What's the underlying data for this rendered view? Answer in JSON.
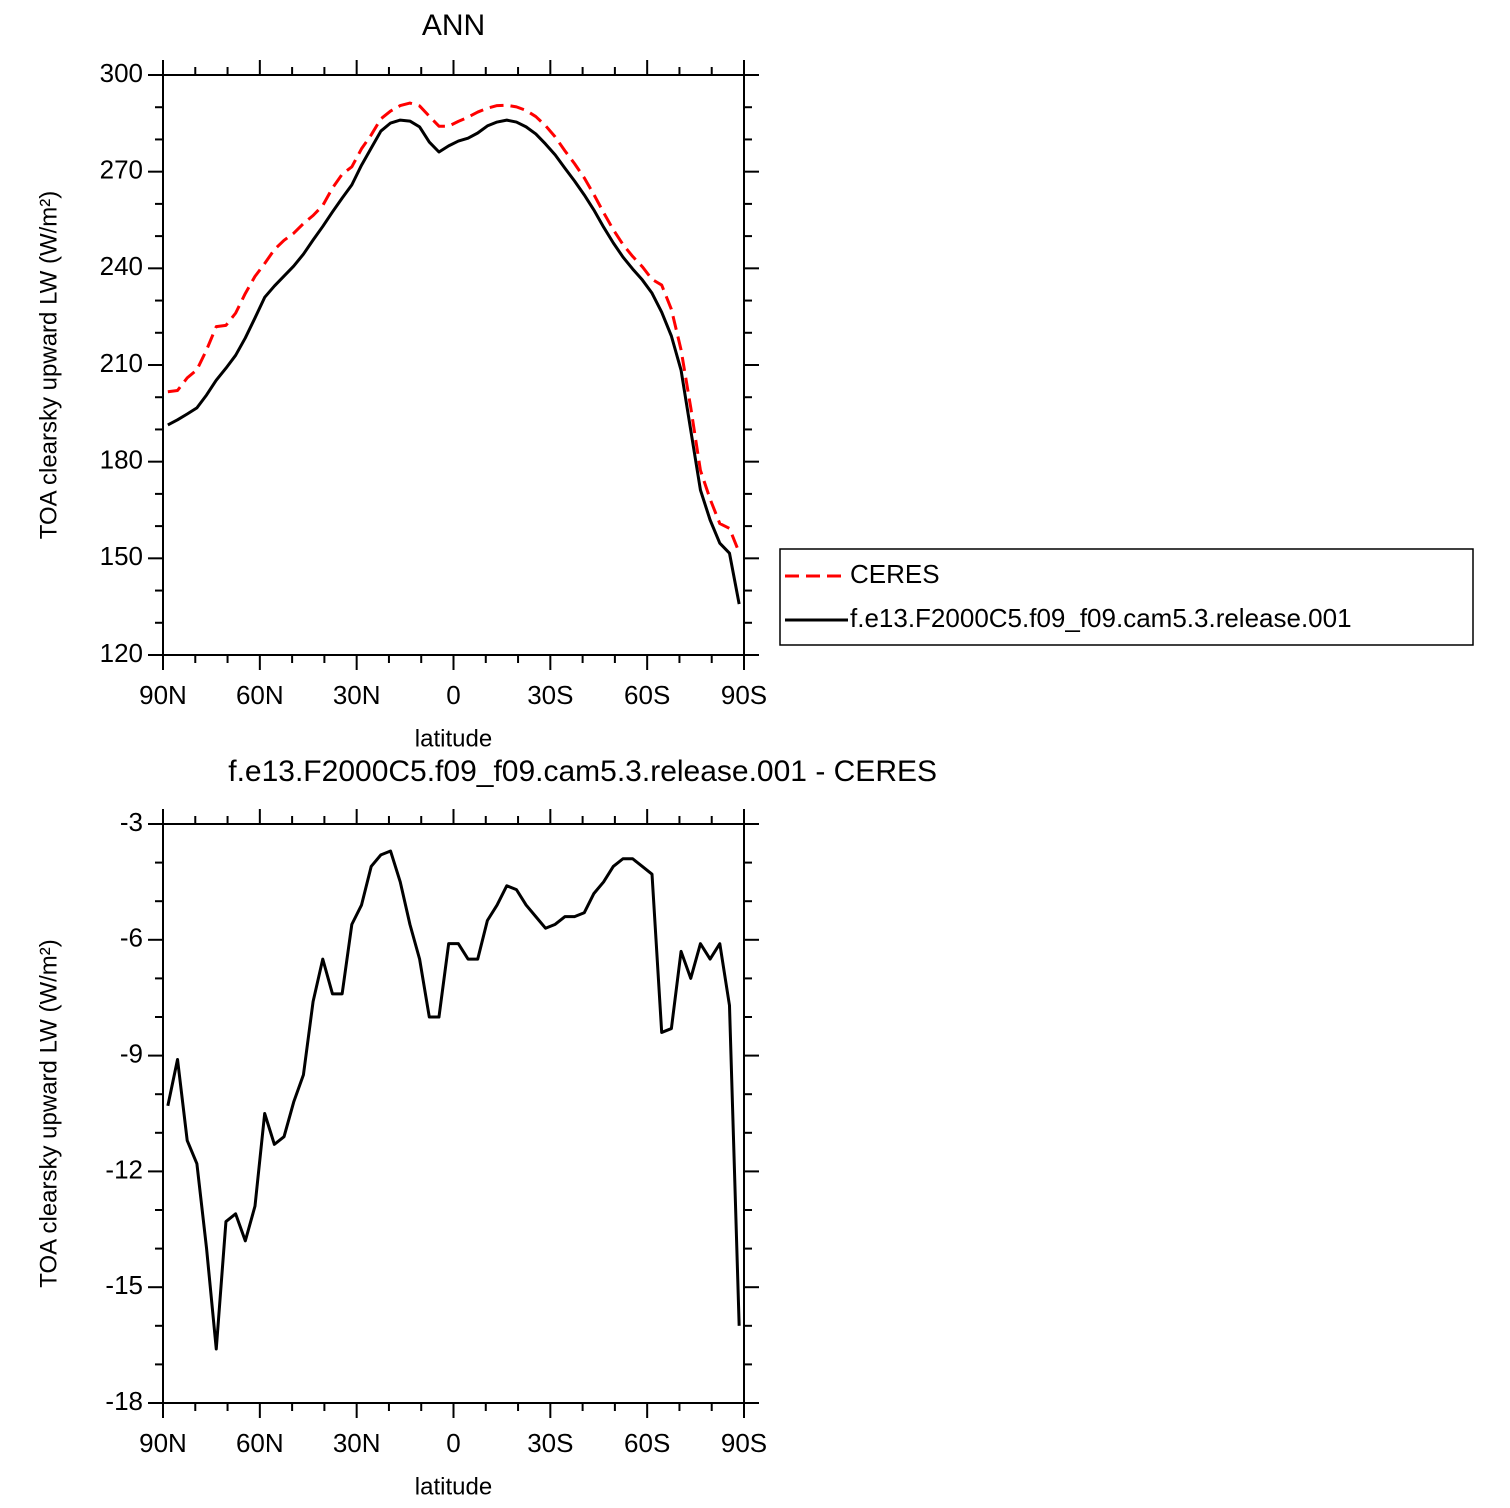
{
  "chart_data": [
    {
      "type": "line",
      "title": "ANN",
      "xlabel": "latitude",
      "ylabel": "TOA clearsky upward LW (W/m²)",
      "x": [
        88.5,
        85.5,
        82.5,
        79.5,
        76.5,
        73.5,
        70.5,
        67.5,
        64.5,
        61.5,
        58.5,
        55.5,
        52.5,
        49.5,
        46.5,
        43.5,
        40.5,
        37.5,
        34.5,
        31.5,
        28.5,
        25.5,
        22.5,
        19.5,
        16.5,
        13.5,
        10.5,
        7.5,
        4.5,
        1.5,
        -1.5,
        -4.5,
        -7.5,
        -10.5,
        -13.5,
        -16.5,
        -19.5,
        -22.5,
        -25.5,
        -28.5,
        -31.5,
        -34.5,
        -37.5,
        -40.5,
        -43.5,
        -46.5,
        -49.5,
        -52.5,
        -55.5,
        -58.5,
        -61.5,
        -64.5,
        -67.5,
        -70.5,
        -73.5,
        -76.5,
        -79.5,
        -82.5,
        -85.5,
        -88.5
      ],
      "xlim": [
        90,
        -90
      ],
      "xticks": [
        {
          "value": 90,
          "label": "90N"
        },
        {
          "value": 60,
          "label": "60N"
        },
        {
          "value": 30,
          "label": "30N"
        },
        0,
        {
          "value": -30,
          "label": "30S"
        },
        {
          "value": -60,
          "label": "60S"
        },
        {
          "value": -90,
          "label": "90S"
        }
      ],
      "xminorticks": [
        80,
        70,
        50,
        40,
        20,
        10,
        -10,
        -20,
        -40,
        -50,
        -70,
        -80
      ],
      "ylim": [
        120,
        300
      ],
      "yticks": [
        120,
        150,
        180,
        210,
        240,
        270,
        300
      ],
      "yminorticks": [
        130,
        140,
        160,
        170,
        190,
        200,
        220,
        230,
        250,
        260,
        280,
        290
      ],
      "legend": "right",
      "series": [
        {
          "name": "CERES",
          "color": "#ff0000",
          "dash": "dashed",
          "values": [
            201.7,
            202.1,
            206.0,
            208.5,
            214.7,
            221.9,
            222.3,
            226.1,
            232.2,
            237.5,
            241.5,
            245.8,
            248.7,
            250.9,
            253.9,
            256.4,
            259.5,
            264.9,
            269.2,
            271.5,
            277.1,
            281.4,
            286.4,
            288.8,
            290.5,
            291.3,
            290.4,
            287.2,
            284.1,
            284.1,
            285.6,
            286.9,
            288.5,
            289.7,
            290.5,
            290.6,
            290.1,
            289.0,
            287.1,
            284.3,
            280.8,
            276.5,
            272.5,
            268.1,
            262.9,
            257.3,
            252.0,
            247.4,
            243.7,
            240.5,
            236.6,
            234.8,
            227.3,
            214.7,
            196.8,
            177.3,
            168.4,
            160.8,
            159.3,
            151.8
          ]
        },
        {
          "name": "f.e13.F2000C5.f09_f09.cam5.3.release.001",
          "color": "#000000",
          "dash": "solid",
          "values": [
            191.4,
            193.0,
            194.8,
            196.7,
            200.7,
            205.3,
            209.0,
            213.0,
            218.4,
            224.6,
            231.0,
            234.5,
            237.6,
            240.7,
            244.4,
            248.8,
            253.0,
            257.5,
            261.8,
            265.9,
            272.0,
            277.3,
            282.6,
            285.1,
            286.0,
            285.7,
            283.9,
            279.2,
            276.1,
            278.0,
            279.5,
            280.4,
            282.0,
            284.2,
            285.4,
            286.0,
            285.4,
            283.9,
            281.7,
            278.6,
            275.2,
            271.1,
            267.1,
            262.8,
            258.1,
            252.8,
            247.9,
            243.5,
            239.8,
            236.4,
            232.3,
            226.4,
            219.0,
            208.4,
            189.8,
            171.2,
            161.9,
            154.7,
            151.6,
            135.8
          ]
        }
      ]
    },
    {
      "type": "line",
      "title": "f.e13.F2000C5.f09_f09.cam5.3.release.001  -  CERES",
      "xlabel": "latitude",
      "ylabel": "TOA clearsky upward LW (W/m²)",
      "x": [
        88.5,
        85.5,
        82.5,
        79.5,
        76.5,
        73.5,
        70.5,
        67.5,
        64.5,
        61.5,
        58.5,
        55.5,
        52.5,
        49.5,
        46.5,
        43.5,
        40.5,
        37.5,
        34.5,
        31.5,
        28.5,
        25.5,
        22.5,
        19.5,
        16.5,
        13.5,
        10.5,
        7.5,
        4.5,
        1.5,
        -1.5,
        -4.5,
        -7.5,
        -10.5,
        -13.5,
        -16.5,
        -19.5,
        -22.5,
        -25.5,
        -28.5,
        -31.5,
        -34.5,
        -37.5,
        -40.5,
        -43.5,
        -46.5,
        -49.5,
        -52.5,
        -55.5,
        -58.5,
        -61.5,
        -64.5,
        -67.5,
        -70.5,
        -73.5,
        -76.5,
        -79.5,
        -82.5,
        -85.5,
        -88.5
      ],
      "xlim": [
        90,
        -90
      ],
      "xticks": [
        {
          "value": 90,
          "label": "90N"
        },
        {
          "value": 60,
          "label": "60N"
        },
        {
          "value": 30,
          "label": "30N"
        },
        0,
        {
          "value": -30,
          "label": "30S"
        },
        {
          "value": -60,
          "label": "60S"
        },
        {
          "value": -90,
          "label": "90S"
        }
      ],
      "xminorticks": [
        80,
        70,
        50,
        40,
        20,
        10,
        -10,
        -20,
        -40,
        -50,
        -70,
        -80
      ],
      "ylim": [
        -18,
        -3
      ],
      "yticks": [
        -18,
        -15,
        -12,
        -9,
        -6,
        -3
      ],
      "yminorticks": [
        -17,
        -16,
        -14,
        -13,
        -11,
        -10,
        -8,
        -7,
        -5,
        -4
      ],
      "series": [
        {
          "color": "#000000",
          "dash": "solid",
          "values": [
            -10.3,
            -9.1,
            -11.2,
            -11.8,
            -14.0,
            -16.6,
            -13.3,
            -13.1,
            -13.8,
            -12.9,
            -10.5,
            -11.3,
            -11.1,
            -10.2,
            -9.5,
            -7.6,
            -6.5,
            -7.4,
            -7.4,
            -5.6,
            -5.1,
            -4.1,
            -3.8,
            -3.7,
            -4.5,
            -5.6,
            -6.5,
            -8.0,
            -8.0,
            -6.1,
            -6.1,
            -6.5,
            -6.5,
            -5.5,
            -5.1,
            -4.6,
            -4.7,
            -5.1,
            -5.4,
            -5.7,
            -5.6,
            -5.4,
            -5.4,
            -5.3,
            -4.8,
            -4.5,
            -4.1,
            -3.9,
            -3.9,
            -4.1,
            -4.3,
            -8.4,
            -8.3,
            -6.3,
            -7.0,
            -6.1,
            -6.5,
            -6.1,
            -7.7,
            -16.0
          ]
        }
      ]
    }
  ]
}
